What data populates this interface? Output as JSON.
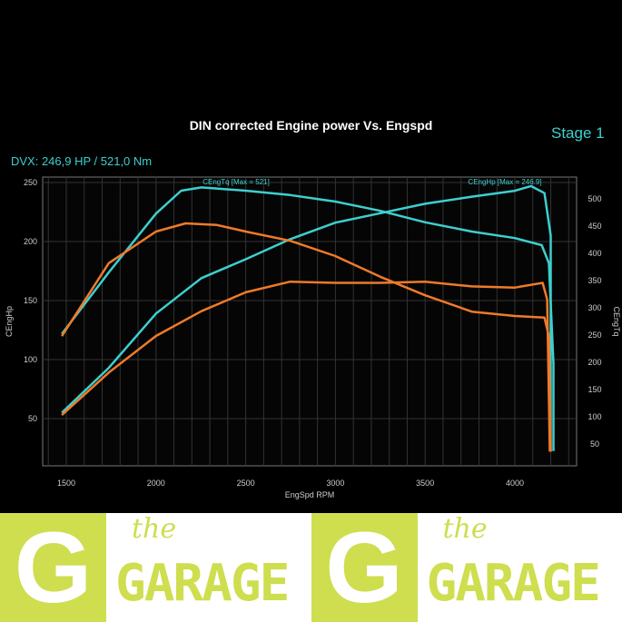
{
  "header": {
    "stage": "Stage 1",
    "dvx": "DVX:  246,9 HP / 521,0 Nm"
  },
  "logo": {
    "the": "the",
    "garage": "GARAGE"
  },
  "colors": {
    "stage1": "#3ecfcf",
    "stock": "#f07a2a"
  },
  "chart_data": {
    "type": "line",
    "title": "DIN corrected Engine power Vs. Engspd",
    "xlabel": "EngSpd RPM",
    "ylabel_left": "CEngHp",
    "ylabel_right": "CEngTq",
    "xlim": [
      1370,
      4350
    ],
    "ylim_left": [
      20,
      255
    ],
    "ylim_right": [
      20,
      530
    ],
    "xticks": [
      1500,
      2000,
      2500,
      3000,
      3500,
      4000
    ],
    "yticks_left": [
      50,
      100,
      150,
      200,
      250
    ],
    "yticks_right": [
      50,
      100,
      150,
      200,
      250,
      300,
      350,
      400,
      450,
      500
    ],
    "grid": true,
    "annotations": [
      "CEngTq [Max = 521]",
      "CEngHp [Max = 246.9]"
    ],
    "series": [
      {
        "name": "CEngHp",
        "axis": "left",
        "color": "#3ecfcf",
        "x": [
          1475,
          1737,
          2000,
          2253,
          2500,
          2748,
          3000,
          3250,
          3500,
          3760,
          4000,
          4090,
          4165,
          4200,
          4200
        ],
        "y": [
          55,
          93,
          139,
          169,
          185,
          202,
          216,
          224,
          232,
          238,
          243,
          247,
          241,
          205,
          22
        ]
      },
      {
        "name": "CEngTq",
        "axis": "right",
        "color": "#3ecfcf",
        "x": [
          1475,
          1737,
          2000,
          2140,
          2253,
          2500,
          2748,
          3000,
          3250,
          3500,
          3760,
          4000,
          4150,
          4190,
          4215,
          4215
        ],
        "y": [
          252,
          365,
          473,
          515,
          521,
          515,
          507,
          495,
          478,
          457,
          440,
          428,
          415,
          382,
          198,
          37
        ]
      },
      {
        "axis": "right",
        "color": "#f07a2a",
        "x": [
          1475,
          1737,
          2000,
          2165,
          2340,
          2500,
          2748,
          3000,
          3250,
          3500,
          3760,
          4000,
          4165,
          4190,
          4200
        ],
        "y": [
          248,
          382,
          440,
          455,
          452,
          440,
          423,
          395,
          357,
          323,
          293,
          285,
          282,
          248,
          37
        ]
      },
      {
        "axis": "left",
        "color": "#f07a2a",
        "x": [
          1475,
          1737,
          2000,
          2253,
          2500,
          2748,
          3000,
          3250,
          3500,
          3760,
          4000,
          4155,
          4180,
          4195
        ],
        "y": [
          53,
          89,
          120,
          141,
          157,
          166,
          165,
          165,
          166,
          162,
          161,
          165,
          151,
          22
        ]
      }
    ]
  }
}
